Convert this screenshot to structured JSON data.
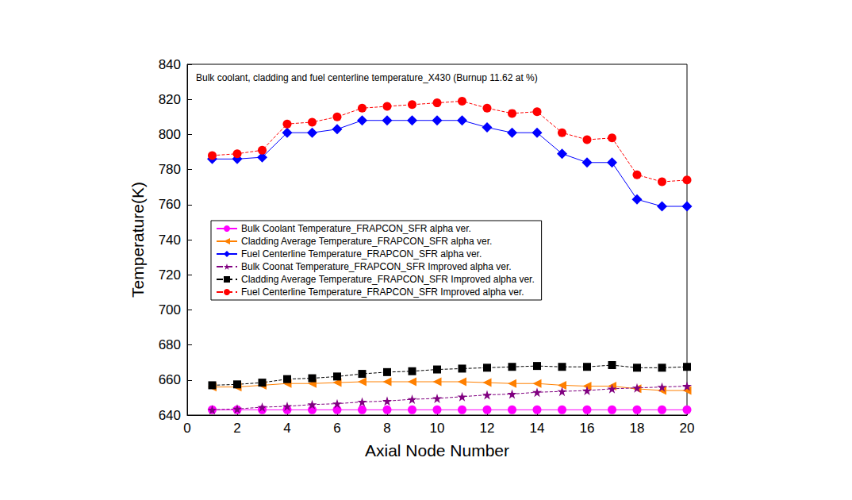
{
  "chart_data": {
    "type": "line",
    "title": "Bulk coolant, cladding and fuel centerline temperature_X430 (Burnup 11.62 at %)",
    "x_label": "Axial Node Number",
    "y_label": "Temperature(K)",
    "x": [
      1,
      2,
      3,
      4,
      5,
      6,
      7,
      8,
      9,
      10,
      11,
      12,
      13,
      14,
      15,
      16,
      17,
      18,
      19,
      20
    ],
    "xlim": [
      0,
      20
    ],
    "xticks": [
      0,
      2,
      4,
      6,
      8,
      10,
      12,
      14,
      16,
      18,
      20
    ],
    "ylim": [
      640,
      840
    ],
    "yticks": [
      640,
      660,
      680,
      700,
      720,
      740,
      760,
      780,
      800,
      820,
      840
    ],
    "grid": false,
    "legend": "left",
    "series": [
      {
        "name": "Bulk Coolant Temperature_FRAPCON_SFR alpha ver.",
        "color": "#ff00ff",
        "marker": "circle",
        "line_style": "solid",
        "values": [
          643,
          643,
          643,
          643,
          643,
          643,
          643,
          643,
          643,
          643,
          643,
          643,
          643,
          643,
          643,
          643,
          643,
          643,
          643,
          643
        ]
      },
      {
        "name": "Cladding Average Temperature_FRAPCON_SFR alpha ver.",
        "color": "#ff8000",
        "marker": "triangle-left",
        "line_style": "solid",
        "values": [
          656,
          656,
          657,
          658,
          658,
          658.5,
          659,
          659,
          659,
          659,
          659,
          658.5,
          658,
          658,
          657,
          656.5,
          656.5,
          655,
          654,
          654
        ]
      },
      {
        "name": "Fuel Centerline Temperature_FRAPCON_SFR alpha ver.",
        "color": "#0000ff",
        "marker": "diamond",
        "line_style": "solid",
        "values": [
          786,
          786,
          787,
          801,
          801,
          803,
          808,
          808,
          808,
          808,
          808,
          804,
          801,
          801,
          789,
          784,
          784,
          763,
          759,
          759
        ]
      },
      {
        "name": "Bulk Coonat Temperature_FRAPCON_SFR Improved alpha ver.",
        "color": "#800080",
        "marker": "star",
        "line_style": "dashed",
        "values": [
          643,
          643.5,
          644.5,
          645,
          646,
          646.5,
          647.5,
          648,
          649,
          649.5,
          650.5,
          651.5,
          652,
          653,
          653.5,
          654,
          655,
          655.5,
          656,
          656.5
        ]
      },
      {
        "name": "Cladding Average Temperature_FRAPCON_SFR Improved alpha ver.",
        "color": "#000000",
        "marker": "square",
        "line_style": "dashed",
        "values": [
          657,
          657.5,
          658.5,
          660.5,
          661,
          662,
          663.5,
          664.5,
          665,
          666,
          666.5,
          667,
          667.5,
          668,
          667.5,
          667.5,
          668.5,
          667,
          667,
          667.5
        ]
      },
      {
        "name": "Fuel Centerline Temperature_FRAPCON_SFR Improved alpha ver.",
        "color": "#ff0000",
        "marker": "circle",
        "line_style": "dashed",
        "values": [
          788,
          789,
          791,
          806,
          807,
          810,
          815,
          816,
          817,
          818,
          819,
          815,
          812,
          813,
          801,
          797,
          798,
          777,
          773,
          774
        ]
      }
    ]
  }
}
